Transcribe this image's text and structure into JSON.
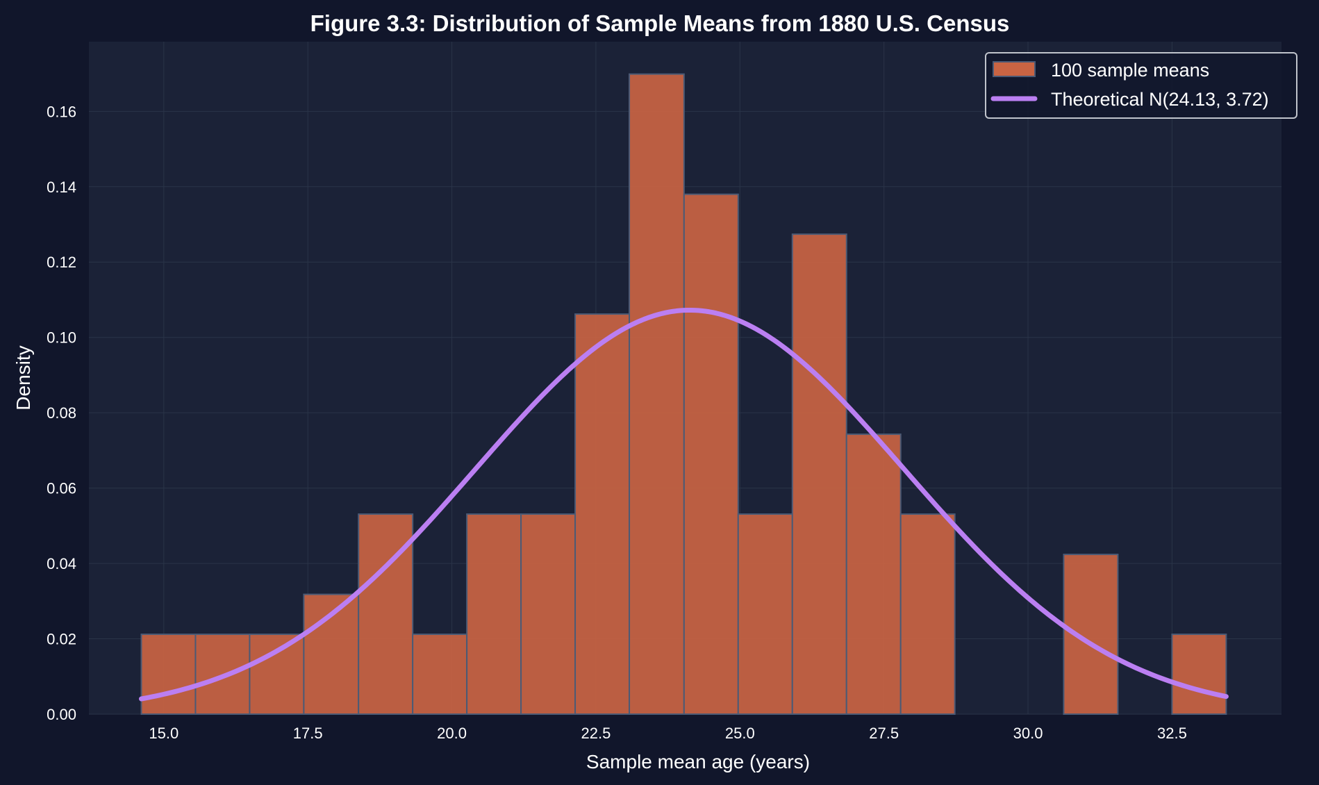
{
  "colors": {
    "figure_bg": "#11162b",
    "plot_bg": "#1b2237",
    "grid": "#2a3448",
    "bar_fill": "#c96443",
    "bar_edge": "#4b5a75",
    "curve": "#bb7ff2",
    "legend_bg": "#11162b",
    "legend_border": "#c0c4cc"
  },
  "chart_data": {
    "type": "bar",
    "title": "Figure 3.3: Distribution of Sample Means from 1880 U.S. Census",
    "xlabel": "Sample mean age (years)",
    "ylabel": "Density",
    "xlim": [
      13.7,
      34.4
    ],
    "ylim": [
      0,
      0.1785
    ],
    "grid": true,
    "legend_position": "top-right",
    "x_ticks": [
      15.0,
      17.5,
      20.0,
      22.5,
      25.0,
      27.5,
      30.0,
      32.5
    ],
    "x_tick_labels": [
      "15.0",
      "17.5",
      "20.0",
      "22.5",
      "25.0",
      "27.5",
      "30.0",
      "32.5"
    ],
    "y_ticks": [
      0.0,
      0.02,
      0.04,
      0.06,
      0.08,
      0.1,
      0.12,
      0.14,
      0.16
    ],
    "y_tick_labels": [
      "0.00",
      "0.02",
      "0.04",
      "0.06",
      "0.08",
      "0.10",
      "0.12",
      "0.14",
      "0.16"
    ],
    "histogram": {
      "name": "100 sample means",
      "bin_edges": [
        14.61,
        15.55,
        16.49,
        17.43,
        18.38,
        19.32,
        20.26,
        21.2,
        22.14,
        23.08,
        24.03,
        24.97,
        25.91,
        26.85,
        27.79,
        28.73,
        29.68,
        30.62,
        31.56,
        32.5,
        33.44
      ],
      "densities": [
        0.0212,
        0.0212,
        0.0212,
        0.0318,
        0.0531,
        0.0212,
        0.0531,
        0.0531,
        0.1062,
        0.1699,
        0.138,
        0.0531,
        0.1274,
        0.0743,
        0.0531,
        0.0,
        0.0,
        0.0424,
        0.0,
        0.0212
      ]
    },
    "curve": {
      "name": "Theoretical N(24.13, 3.72)",
      "mean": 24.13,
      "sd": 3.72,
      "x_range": [
        14.61,
        33.44
      ]
    },
    "legend": [
      "100 sample means",
      "Theoretical N(24.13, 3.72)"
    ]
  }
}
